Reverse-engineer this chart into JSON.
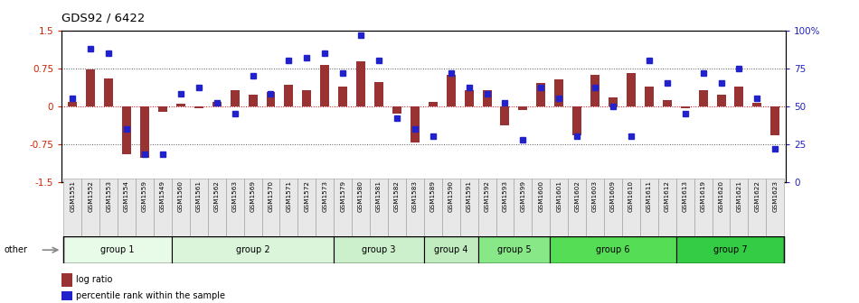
{
  "title": "GDS92 / 6422",
  "samples": [
    "GSM1551",
    "GSM1552",
    "GSM1553",
    "GSM1554",
    "GSM1559",
    "GSM1549",
    "GSM1560",
    "GSM1561",
    "GSM1562",
    "GSM1563",
    "GSM1569",
    "GSM1570",
    "GSM1571",
    "GSM1572",
    "GSM1573",
    "GSM1579",
    "GSM1580",
    "GSM1581",
    "GSM1582",
    "GSM1583",
    "GSM1589",
    "GSM1590",
    "GSM1591",
    "GSM1592",
    "GSM1593",
    "GSM1599",
    "GSM1600",
    "GSM1601",
    "GSM1602",
    "GSM1603",
    "GSM1609",
    "GSM1610",
    "GSM1611",
    "GSM1612",
    "GSM1613",
    "GSM1619",
    "GSM1620",
    "GSM1621",
    "GSM1622",
    "GSM1623"
  ],
  "log_ratio": [
    0.08,
    0.72,
    0.55,
    -0.95,
    -1.02,
    -0.12,
    0.05,
    -0.05,
    0.08,
    0.32,
    0.22,
    0.28,
    0.42,
    0.32,
    0.82,
    0.38,
    0.88,
    0.48,
    -0.15,
    -0.72,
    0.08,
    0.62,
    0.32,
    0.32,
    -0.38,
    -0.08,
    0.45,
    0.52,
    -0.58,
    0.62,
    0.18,
    0.65,
    0.38,
    0.12,
    -0.05,
    0.32,
    0.22,
    0.38,
    0.07,
    -0.58
  ],
  "percentile": [
    55,
    88,
    85,
    35,
    18,
    18,
    58,
    62,
    52,
    45,
    70,
    58,
    80,
    82,
    85,
    72,
    97,
    80,
    42,
    35,
    30,
    72,
    62,
    58,
    52,
    28,
    62,
    55,
    30,
    62,
    50,
    30,
    80,
    65,
    45,
    72,
    65,
    75,
    55,
    22
  ],
  "groups": [
    {
      "name": "group 1",
      "start": 0,
      "end": 5
    },
    {
      "name": "group 2",
      "start": 6,
      "end": 14
    },
    {
      "name": "group 3",
      "start": 15,
      "end": 19
    },
    {
      "name": "group 4",
      "start": 20,
      "end": 22
    },
    {
      "name": "group 5",
      "start": 23,
      "end": 26
    },
    {
      "name": "group 6",
      "start": 27,
      "end": 33
    },
    {
      "name": "group 7",
      "start": 34,
      "end": 39
    }
  ],
  "group_colors": [
    "#e8fae8",
    "#daf5da",
    "#ccf0cc",
    "#c0ecc0",
    "#88e888",
    "#55dd55",
    "#33cc44"
  ],
  "bar_color": "#993333",
  "dot_color": "#2222cc",
  "zero_line_color": "#cc0000",
  "dotted_line_color": "#555555",
  "other_arrow_color": "#888888",
  "bg_color": "#ffffff",
  "ylim_left": [
    -1.5,
    1.5
  ],
  "ylim_right": [
    0,
    100
  ],
  "yticks_left": [
    -1.5,
    -0.75,
    0,
    0.75,
    1.5
  ],
  "ytick_labels_left": [
    "-1.5",
    "-0.75",
    "0",
    "0.75",
    "1.5"
  ],
  "yticks_right": [
    0,
    25,
    50,
    75,
    100
  ],
  "ytick_labels_right": [
    "0",
    "25",
    "50",
    "75",
    "100%"
  ],
  "left_axis_color": "#cc2200",
  "right_axis_color": "#2222bb"
}
